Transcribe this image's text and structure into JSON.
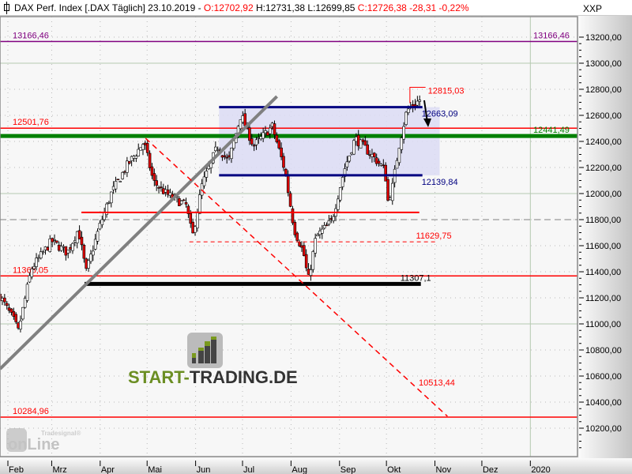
{
  "header": {
    "title": "DAX Perf. Index [.DAX  Täglich] 23.10.2019 -",
    "open": "O:12702,92",
    "high": "H:12731,38",
    "low": "L:12699,85",
    "close": "C:12726,38 -28,31 -0,22%"
  },
  "chart_data": {
    "type": "candlestick",
    "yunit": "XXP",
    "ylim": [
      10000,
      13300
    ],
    "yticks": [
      "13200,00",
      "13000,00",
      "12800,00",
      "12600,00",
      "12400,00",
      "12200,00",
      "12000,00",
      "11800,00",
      "11600,00",
      "11400,00",
      "11200,00",
      "11000,00",
      "10800,00",
      "10600,00",
      "10400,00",
      "10200,00"
    ],
    "ytick_values": [
      13200,
      13000,
      12800,
      12600,
      12400,
      12200,
      12000,
      11800,
      11600,
      11400,
      11200,
      11000,
      10800,
      10600,
      10400,
      10200
    ],
    "xticks": [
      {
        "label": "Feb",
        "date": "2019-02-01"
      },
      {
        "label": "Mrz",
        "date": "2019-03-01"
      },
      {
        "label": "Apr",
        "date": "2019-04-01"
      },
      {
        "label": "Mai",
        "date": "2019-05-01"
      },
      {
        "label": "Jun",
        "date": "2019-06-01"
      },
      {
        "label": "Jul",
        "date": "2019-07-01"
      },
      {
        "label": "Aug",
        "date": "2019-08-01"
      },
      {
        "label": "Sep",
        "date": "2019-09-01"
      },
      {
        "label": "Okt",
        "date": "2019-10-01"
      },
      {
        "label": "Nov",
        "date": "2019-11-01"
      },
      {
        "label": "Dez",
        "date": "2019-12-01"
      },
      {
        "label": "2020",
        "date": "2020-01-01"
      }
    ],
    "grid": true,
    "approx_closes": [
      [
        "2019-01-27",
        11212
      ],
      [
        "2019-02-06",
        11000
      ],
      [
        "2019-02-07",
        10910
      ],
      [
        "2019-02-16",
        11424
      ],
      [
        "2019-03-01",
        11636
      ],
      [
        "2019-03-11",
        11545
      ],
      [
        "2019-03-18",
        11727
      ],
      [
        "2019-03-23",
        11394
      ],
      [
        "2019-03-31",
        11727
      ],
      [
        "2019-04-08",
        12000
      ],
      [
        "2019-04-18",
        12212
      ],
      [
        "2019-04-29",
        12394
      ],
      [
        "2019-05-05",
        12091
      ],
      [
        "2019-05-13",
        12000
      ],
      [
        "2019-05-26",
        11909
      ],
      [
        "2019-05-30",
        11667
      ],
      [
        "2019-06-05",
        12061
      ],
      [
        "2019-06-15",
        12364
      ],
      [
        "2019-06-22",
        12242
      ],
      [
        "2019-06-30",
        12606
      ],
      [
        "2019-07-08",
        12364
      ],
      [
        "2019-07-20",
        12515
      ],
      [
        "2019-07-28",
        12182
      ],
      [
        "2019-08-03",
        11727
      ],
      [
        "2019-08-09",
        11545
      ],
      [
        "2019-08-12",
        11333
      ],
      [
        "2019-08-17",
        11667
      ],
      [
        "2019-08-27",
        11788
      ],
      [
        "2019-09-04",
        12182
      ],
      [
        "2019-09-11",
        12424
      ],
      [
        "2019-09-21",
        12303
      ],
      [
        "2019-09-30",
        12182
      ],
      [
        "2019-10-02",
        11939
      ],
      [
        "2019-10-05",
        12061
      ],
      [
        "2019-10-09",
        12364
      ],
      [
        "2019-10-14",
        12636
      ],
      [
        "2019-10-23",
        12726.38
      ]
    ],
    "levels": [
      {
        "value": 13166.46,
        "label": "13166,46",
        "label2": "13166,46",
        "color": "#800080",
        "style": "solid"
      },
      {
        "value": 12501.76,
        "label": "12501,76",
        "color": "#ff0000",
        "style": "solid"
      },
      {
        "value": 12441.49,
        "label2": "12441,49",
        "color": "#008000",
        "style": "thick"
      },
      {
        "value": 11800,
        "color": "#808080",
        "style": "dashed"
      },
      {
        "value": 11368.05,
        "label": "11368,05",
        "color": "#ff0000",
        "style": "solid"
      },
      {
        "value": 10284.96,
        "label": "10284,96",
        "color": "#ff0000",
        "style": "solid"
      }
    ],
    "zone": {
      "from": "2019-06-16",
      "to": "2019-11-04",
      "top": 12663.09,
      "bottom": 12139.84,
      "top_label": "12663,09",
      "bottom_label": "12139,84",
      "line_end": "2019-10-24",
      "fill": "#dcdcf5",
      "line_color": "#000080"
    },
    "segments": [
      {
        "from": "2019-03-20",
        "to": "2019-10-22",
        "value": 11855,
        "color": "#ff0000",
        "style": "solid"
      },
      {
        "from": "2019-05-28",
        "to": "2019-11-02",
        "value": 11629.75,
        "label": "11629,75",
        "color": "#ff0000",
        "style": "dashed"
      },
      {
        "from": "2019-03-22",
        "to": "2019-10-23",
        "value": 11307.1,
        "label": "11307,1",
        "color": "#000000",
        "style": "thick"
      }
    ],
    "high_marker": {
      "value": 12815.03,
      "label": "12815,03",
      "from": "2019-10-16",
      "to": "2019-10-26"
    },
    "trendlines": [
      {
        "from": [
          "2019-01-27",
          10655
        ],
        "to": [
          "2019-07-23",
          12745
        ],
        "color": "#808080",
        "style": "thick"
      },
      {
        "from": [
          "2019-04-30",
          12424
        ],
        "to": [
          "2019-11-09",
          10291
        ],
        "color": "#ff0000",
        "style": "dashed",
        "label": "10513,44"
      }
    ],
    "colors": {
      "up": "#ffffff",
      "down": "#e00000",
      "grid_major": "#b5c9b0",
      "grid_minor": "#b8b8b8"
    }
  },
  "watermarks": {
    "center": "START-TRADING.DE",
    "corner": "Tradesignal online"
  }
}
